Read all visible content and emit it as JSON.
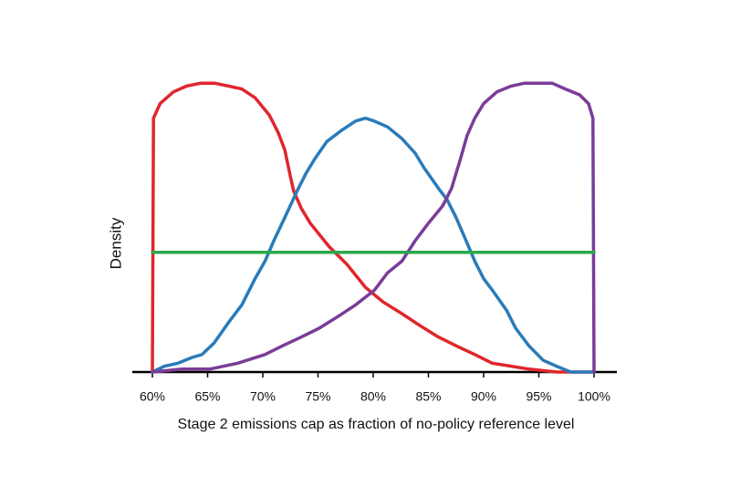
{
  "chart_data": {
    "type": "line",
    "xlabel": "Stage 2 emissions cap as fraction of no-policy reference level",
    "ylabel": "Density",
    "xlim": [
      60,
      100
    ],
    "ylim": [
      0,
      1
    ],
    "xticks": [
      {
        "value": 60,
        "label": "60%"
      },
      {
        "value": 65,
        "label": "65%"
      },
      {
        "value": 70,
        "label": "70%"
      },
      {
        "value": 75,
        "label": "75%"
      },
      {
        "value": 80,
        "label": "80%"
      },
      {
        "value": 85,
        "label": "85%"
      },
      {
        "value": 90,
        "label": "90%"
      },
      {
        "value": 95,
        "label": "95%"
      },
      {
        "value": 100,
        "label": "100%"
      }
    ],
    "series": [
      {
        "color": "#e0262c",
        "x": [
          60,
          60.1,
          60.7,
          61.9,
          63.1,
          64.4,
          65.6,
          66.9,
          68.1,
          69.3,
          70.6,
          71.4,
          72.0,
          72.5,
          72.8,
          73.5,
          74.3,
          76.0,
          77.6,
          79.3,
          80.9,
          82.6,
          84.2,
          85.9,
          87.5,
          89.2,
          90.8,
          92.5,
          94.1,
          96.6,
          100
        ],
        "values": [
          0,
          0.87,
          0.92,
          0.96,
          0.98,
          0.99,
          0.99,
          0.98,
          0.97,
          0.94,
          0.88,
          0.82,
          0.76,
          0.67,
          0.62,
          0.56,
          0.51,
          0.43,
          0.37,
          0.29,
          0.24,
          0.2,
          0.16,
          0.12,
          0.09,
          0.06,
          0.03,
          0.02,
          0.01,
          0,
          0
        ]
      },
      {
        "color": "#2a7bb9",
        "x": [
          60,
          61.1,
          62.3,
          63.6,
          64.5,
          65.6,
          66.9,
          68.1,
          69.3,
          70.2,
          71.0,
          72.0,
          73.1,
          73.9,
          74.7,
          75.8,
          77.2,
          78.4,
          79.3,
          80.1,
          81.3,
          82.6,
          83.8,
          84.6,
          85.9,
          86.7,
          87.5,
          88.3,
          89.2,
          90.0,
          90.8,
          92.1,
          92.9,
          94.1,
          95.4,
          96.6,
          97.9,
          100
        ],
        "values": [
          0,
          0.02,
          0.03,
          0.05,
          0.06,
          0.1,
          0.17,
          0.23,
          0.32,
          0.38,
          0.45,
          0.53,
          0.62,
          0.68,
          0.73,
          0.79,
          0.83,
          0.86,
          0.87,
          0.86,
          0.84,
          0.8,
          0.75,
          0.7,
          0.63,
          0.59,
          0.53,
          0.46,
          0.38,
          0.32,
          0.28,
          0.21,
          0.15,
          0.09,
          0.04,
          0.02,
          0,
          0
        ]
      },
      {
        "color": "#7b3c98",
        "x": [
          60,
          62.7,
          65.2,
          67.7,
          70.2,
          71.8,
          73.5,
          75.1,
          76.8,
          78.4,
          80.1,
          81.3,
          82.6,
          83.8,
          85.0,
          86.3,
          87.1,
          87.9,
          88.5,
          89.2,
          90.0,
          91.2,
          92.5,
          93.7,
          95.0,
          96.2,
          97.4,
          98.7,
          99.5,
          99.9,
          100
        ],
        "values": [
          0,
          0.01,
          0.01,
          0.03,
          0.06,
          0.09,
          0.12,
          0.15,
          0.19,
          0.23,
          0.28,
          0.34,
          0.38,
          0.45,
          0.51,
          0.57,
          0.63,
          0.73,
          0.81,
          0.87,
          0.92,
          0.96,
          0.98,
          0.99,
          0.99,
          0.99,
          0.97,
          0.95,
          0.92,
          0.87,
          0
        ]
      },
      {
        "color": "#2ba84a",
        "x": [
          60,
          100
        ],
        "values": [
          0.41,
          0.41
        ]
      }
    ]
  }
}
